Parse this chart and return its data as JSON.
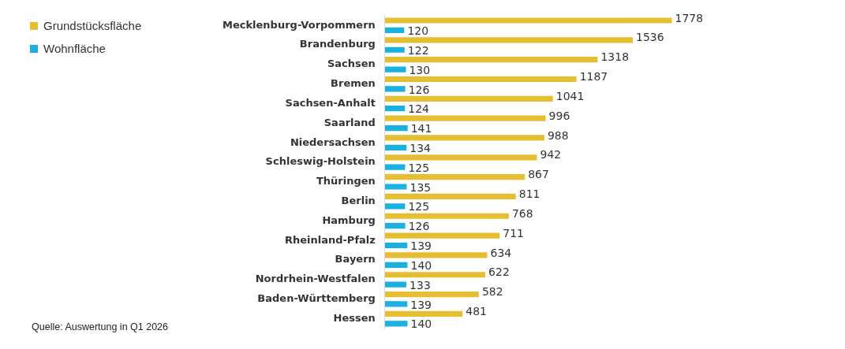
{
  "chart_data": {
    "type": "bar",
    "orientation": "horizontal",
    "data_labels": true,
    "legend": "top left",
    "categories": [
      "Mecklenburg-Vorpommern",
      "Brandenburg",
      "Sachsen",
      "Bremen",
      "Sachsen-Anhalt",
      "Saarland",
      "Niedersachsen",
      "Schleswig-Holstein",
      "Thüringen",
      "Berlin",
      "Hamburg",
      "Rheinland-Pfalz",
      "Bayern",
      "Nordrhein-Westfalen",
      "Baden-Württemberg",
      "Hessen"
    ],
    "series": [
      {
        "name": "Grundstücksfläche",
        "color": "#e6be32",
        "values": [
          1778,
          1536,
          1318,
          1187,
          1041,
          996,
          988,
          942,
          867,
          811,
          768,
          711,
          634,
          622,
          582,
          481
        ]
      },
      {
        "name": "Wohnfläche",
        "color": "#1ab0e0",
        "values": [
          120,
          122,
          130,
          126,
          124,
          141,
          134,
          125,
          135,
          125,
          126,
          139,
          140,
          133,
          139,
          140
        ]
      }
    ],
    "annotations": [
      "Quelle: Auswertung in Q1 2026"
    ]
  }
}
